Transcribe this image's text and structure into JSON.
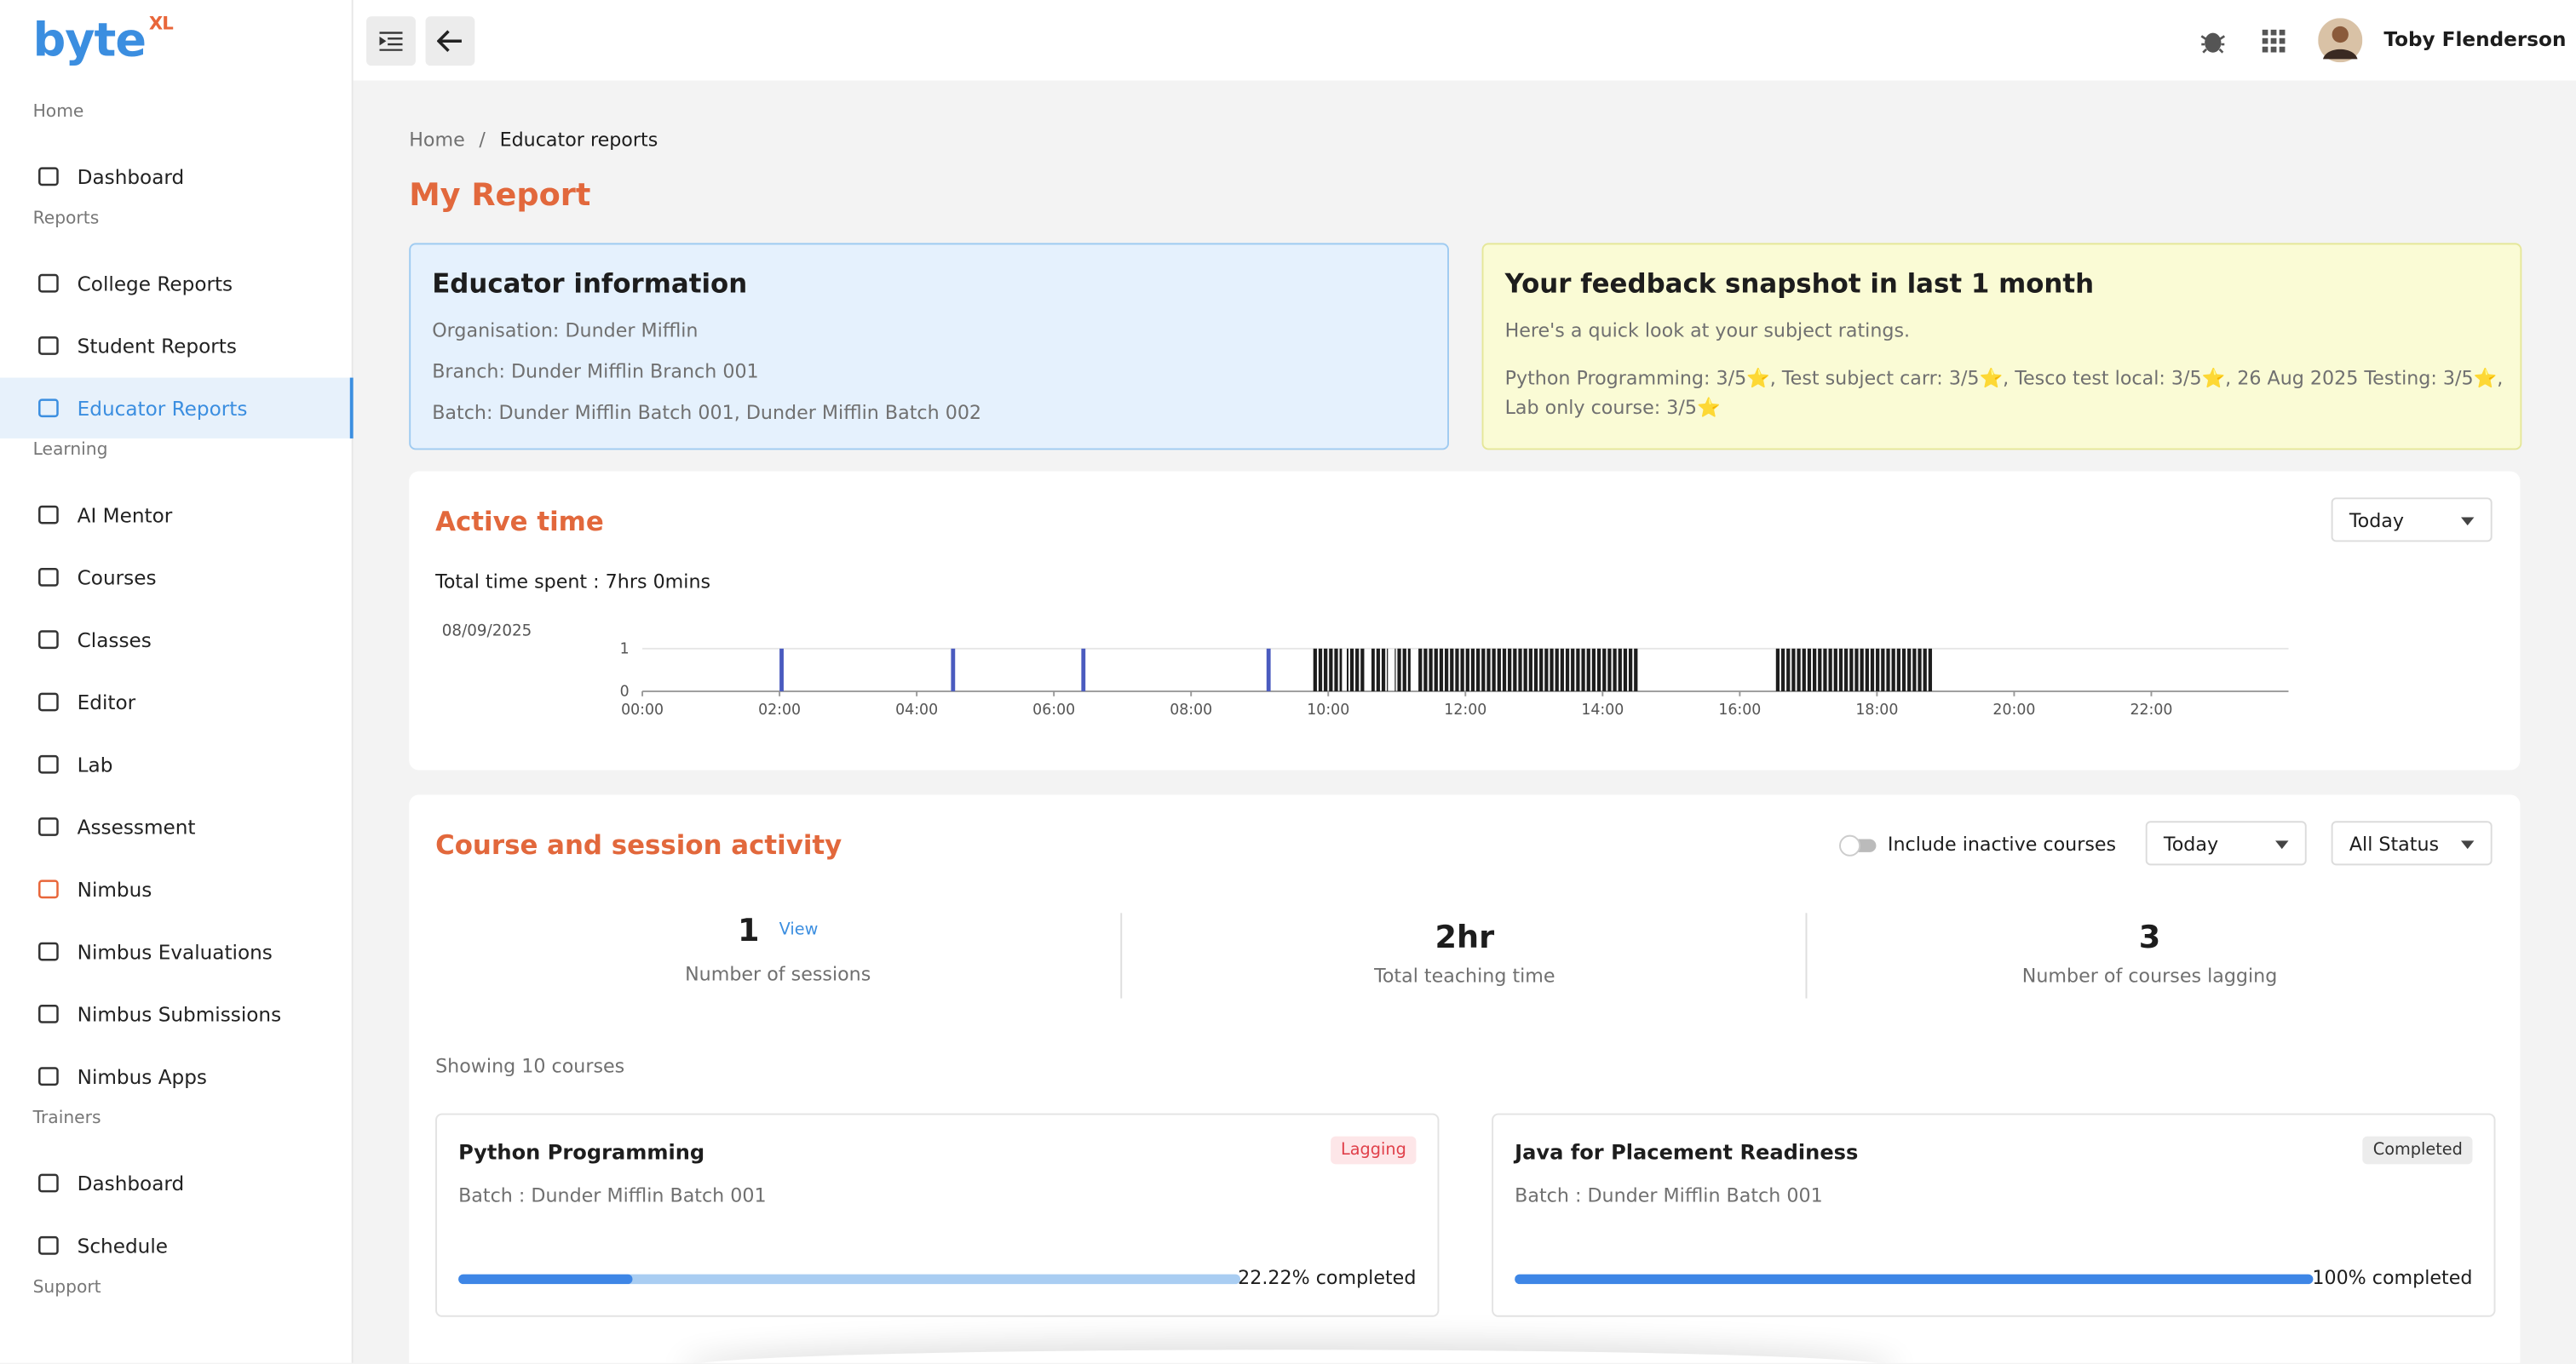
{
  "sidebar": {
    "logo": "byte",
    "logo_sup": "XL",
    "sections": [
      {
        "title": "Home",
        "items": [
          {
            "label": "Dashboard"
          }
        ]
      },
      {
        "title": "Reports",
        "items": [
          {
            "label": "College Reports"
          },
          {
            "label": "Student Reports"
          },
          {
            "label": "Educator Reports",
            "active": true
          }
        ]
      },
      {
        "title": "Learning",
        "items": [
          {
            "label": "AI Mentor"
          },
          {
            "label": "Courses"
          },
          {
            "label": "Classes"
          },
          {
            "label": "Editor"
          },
          {
            "label": "Lab"
          },
          {
            "label": "Assessment"
          },
          {
            "label": "Nimbus",
            "accent": true
          },
          {
            "label": "Nimbus Evaluations"
          },
          {
            "label": "Nimbus Submissions"
          },
          {
            "label": "Nimbus Apps"
          }
        ]
      },
      {
        "title": "Trainers",
        "items": [
          {
            "label": "Dashboard"
          },
          {
            "label": "Schedule"
          }
        ]
      },
      {
        "title": "Support",
        "items": []
      }
    ]
  },
  "header": {
    "user_name": "Toby Flenderson"
  },
  "breadcrumb": {
    "home": "Home",
    "separator": "/",
    "current": "Educator reports"
  },
  "page_title": "My Report",
  "educator_info": {
    "title": "Educator information",
    "organisation": "Organisation: Dunder Mifflin",
    "branch": "Branch: Dunder Mifflin Branch 001",
    "batch": "Batch: Dunder Mifflin Batch 001, Dunder Mifflin Batch 002"
  },
  "feedback": {
    "title": "Your feedback snapshot in last 1 month",
    "subtitle": "Here's a quick look at your subject ratings.",
    "ratings": "Python Programming: 3/5⭐, Test subject carr: 3/5⭐, Tesco test local: 3/5⭐, 26 Aug 2025 Testing: 3/5⭐, Lab only course: 3/5⭐"
  },
  "active_time": {
    "title": "Active time",
    "filter": "Today",
    "total": "Total time spent : 7hrs 0mins",
    "chart_data": {
      "type": "timeline",
      "date": "08/09/2025",
      "color": "#4a5bbf",
      "xlim": [
        0,
        24
      ],
      "ylim": [
        0,
        1
      ],
      "yticks": [
        0,
        1
      ],
      "xticks": [
        {
          "value": 0,
          "label": "00:00"
        },
        {
          "value": 2,
          "label": "02:00"
        },
        {
          "value": 4,
          "label": "04:00"
        },
        {
          "value": 6,
          "label": "06:00"
        },
        {
          "value": 8,
          "label": "08:00"
        },
        {
          "value": 10,
          "label": "10:00"
        },
        {
          "value": 12,
          "label": "12:00"
        },
        {
          "value": 14,
          "label": "14:00"
        },
        {
          "value": 16,
          "label": "16:00"
        },
        {
          "value": 18,
          "label": "18:00"
        },
        {
          "value": 20,
          "label": "20:00"
        },
        {
          "value": 22,
          "label": "22:00"
        }
      ],
      "x_start": [
        2.0,
        4.5,
        6.4,
        9.1,
        9.77,
        10.27,
        10.63,
        10.97,
        11.3,
        16.52
      ],
      "x_end": [
        2.06,
        4.56,
        6.46,
        9.16,
        10.2,
        10.53,
        10.87,
        11.2,
        14.53,
        18.81
      ],
      "values": [
        1,
        1,
        1,
        1,
        1,
        1,
        1,
        1,
        1,
        1
      ]
    }
  },
  "course_activity": {
    "title": "Course and session activity",
    "toggle_label": "Include inactive courses",
    "filter_period": "Today",
    "filter_status": "All Status",
    "stats": [
      {
        "value": "1",
        "link": "View",
        "label": "Number of sessions"
      },
      {
        "value": "2hr",
        "label": "Total teaching time"
      },
      {
        "value": "3",
        "label": "Number of courses lagging"
      }
    ],
    "showing": "Showing 10 courses",
    "courses": [
      {
        "title": "Python Programming",
        "status": "Lagging",
        "badge_style": "danger",
        "batch": "Batch : Dunder Mifflin Batch 001",
        "progress": 22.22,
        "progress_label": "22.22% completed"
      },
      {
        "title": "Java for Placement Readiness",
        "status": "Completed",
        "badge_style": "neutral",
        "batch": "Batch : Dunder Mifflin Batch 001",
        "progress": 100,
        "progress_label": "100% completed"
      }
    ]
  }
}
